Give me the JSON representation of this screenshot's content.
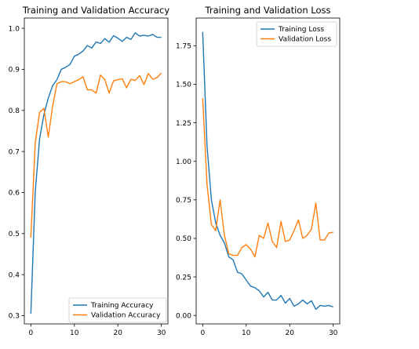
{
  "chart_data": [
    {
      "type": "line",
      "title": "Training and Validation Accuracy",
      "xlabel": "",
      "ylabel": "",
      "xlim": [
        -1.5,
        31.5
      ],
      "ylim": [
        0.28,
        1.025
      ],
      "xticks": [
        0,
        10,
        20,
        30
      ],
      "yticks": [
        0.3,
        0.4,
        0.5,
        0.6,
        0.7,
        0.8,
        0.9,
        1.0
      ],
      "xtick_labels": [
        "0",
        "10",
        "20",
        "30"
      ],
      "ytick_labels": [
        "0.3",
        "0.4",
        "0.5",
        "0.6",
        "0.7",
        "0.8",
        "0.9",
        "1.0"
      ],
      "grid": false,
      "legend": "bottom-right",
      "x": [
        0,
        1,
        2,
        3,
        4,
        5,
        6,
        7,
        8,
        9,
        10,
        11,
        12,
        13,
        14,
        15,
        16,
        17,
        18,
        19,
        20,
        21,
        22,
        23,
        24,
        25,
        26,
        27,
        28,
        29,
        30
      ],
      "series": [
        {
          "name": "Training Accuracy",
          "color": "#1f77b4",
          "values": [
            0.305,
            0.6,
            0.73,
            0.79,
            0.83,
            0.86,
            0.875,
            0.9,
            0.905,
            0.912,
            0.932,
            0.937,
            0.945,
            0.958,
            0.952,
            0.967,
            0.963,
            0.975,
            0.966,
            0.982,
            0.976,
            0.968,
            0.978,
            0.973,
            0.989,
            0.981,
            0.983,
            0.981,
            0.985,
            0.978,
            0.978
          ]
        },
        {
          "name": "Validation Accuracy",
          "color": "#ff7f0e",
          "values": [
            0.49,
            0.72,
            0.795,
            0.805,
            0.735,
            0.81,
            0.865,
            0.87,
            0.87,
            0.865,
            0.87,
            0.875,
            0.882,
            0.85,
            0.85,
            0.842,
            0.886,
            0.875,
            0.842,
            0.872,
            0.875,
            0.877,
            0.855,
            0.876,
            0.873,
            0.885,
            0.863,
            0.89,
            0.876,
            0.88,
            0.891
          ]
        }
      ]
    },
    {
      "type": "line",
      "title": "Training and Validation Loss",
      "xlabel": "",
      "ylabel": "",
      "xlim": [
        -1.5,
        31.5
      ],
      "ylim": [
        -0.055,
        1.93
      ],
      "xticks": [
        0,
        10,
        20,
        30
      ],
      "yticks": [
        0.0,
        0.25,
        0.5,
        0.75,
        1.0,
        1.25,
        1.5,
        1.75
      ],
      "xtick_labels": [
        "0",
        "10",
        "20",
        "30"
      ],
      "ytick_labels": [
        "0.00",
        "0.25",
        "0.50",
        "0.75",
        "1.00",
        "1.25",
        "1.50",
        "1.75"
      ],
      "grid": false,
      "legend": "top-right",
      "x": [
        0,
        1,
        2,
        3,
        4,
        5,
        6,
        7,
        8,
        9,
        10,
        11,
        12,
        13,
        14,
        15,
        16,
        17,
        18,
        19,
        20,
        21,
        22,
        23,
        24,
        25,
        26,
        27,
        28,
        29,
        30
      ],
      "series": [
        {
          "name": "Training Loss",
          "color": "#1f77b4",
          "values": [
            1.84,
            1.1,
            0.75,
            0.6,
            0.52,
            0.47,
            0.38,
            0.36,
            0.28,
            0.27,
            0.23,
            0.19,
            0.18,
            0.16,
            0.12,
            0.15,
            0.1,
            0.1,
            0.13,
            0.08,
            0.11,
            0.06,
            0.075,
            0.1,
            0.075,
            0.095,
            0.04,
            0.065,
            0.06,
            0.065,
            0.055
          ]
        },
        {
          "name": "Validation Loss",
          "color": "#ff7f0e",
          "values": [
            1.41,
            0.85,
            0.59,
            0.55,
            0.75,
            0.52,
            0.4,
            0.39,
            0.39,
            0.44,
            0.46,
            0.43,
            0.38,
            0.52,
            0.5,
            0.6,
            0.48,
            0.44,
            0.61,
            0.48,
            0.49,
            0.55,
            0.62,
            0.5,
            0.52,
            0.56,
            0.73,
            0.49,
            0.49,
            0.535,
            0.54
          ]
        }
      ]
    }
  ]
}
